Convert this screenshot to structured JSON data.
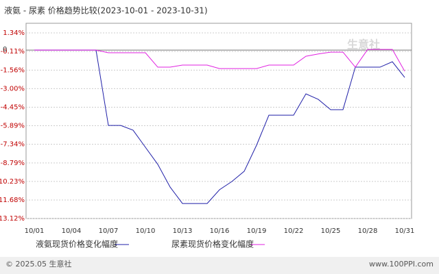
{
  "chart_data": {
    "type": "line",
    "title": "液氨 - 尿素 价格趋势比较(2023-10-01 - 2023-10-31)",
    "categories": [
      "10/01",
      null,
      null,
      "10/04",
      null,
      null,
      "10/07",
      null,
      null,
      "10/10",
      null,
      null,
      "10/13",
      null,
      null,
      "10/16",
      null,
      null,
      "10/19",
      null,
      null,
      "10/22",
      null,
      null,
      "10/25",
      null,
      null,
      "10/28",
      null,
      null,
      "10/31"
    ],
    "series": [
      {
        "name": "液氨现货价格变化幅度",
        "color": "#1f1fa8",
        "values": [
          0,
          0,
          0,
          0,
          0,
          0,
          -5.87,
          -5.87,
          -6.24,
          -7.57,
          -8.9,
          -10.67,
          -11.95,
          -11.95,
          -11.95,
          -10.88,
          -10.24,
          -9.44,
          -7.41,
          -5.07,
          -5.07,
          -5.07,
          -3.41,
          -3.84,
          -4.64,
          -4.64,
          -1.33,
          -1.33,
          -1.33,
          -0.91,
          -2.13
        ]
      },
      {
        "name": "尿素现货价格变化幅度",
        "color": "#e020e0",
        "values": [
          0,
          0,
          0,
          0,
          0,
          0,
          -0.21,
          -0.21,
          -0.21,
          -0.21,
          -1.33,
          -1.33,
          -1.17,
          -1.17,
          -1.17,
          -1.44,
          -1.44,
          -1.44,
          -1.44,
          -1.17,
          -1.17,
          -1.17,
          -0.48,
          -0.3,
          -0.16,
          -0.16,
          -1.33,
          0.05,
          0.05,
          0.05,
          -1.65
        ]
      }
    ],
    "ylim": [
      -13.12,
      1.34
    ],
    "yticks": [
      {
        "value": 1.34,
        "label": "1.34%"
      },
      {
        "value": -0.11,
        "label": "-0.11%"
      },
      {
        "value": -1.56,
        "label": "-1.56%"
      },
      {
        "value": -3.0,
        "label": "-3.00%"
      },
      {
        "value": -4.45,
        "label": "-4.45%"
      },
      {
        "value": -5.89,
        "label": "-5.89%"
      },
      {
        "value": -7.34,
        "label": "-7.34%"
      },
      {
        "value": -8.79,
        "label": "-8.79%"
      },
      {
        "value": -10.23,
        "label": "-10.23%"
      },
      {
        "value": -11.68,
        "label": "-11.68%"
      },
      {
        "value": -13.12,
        "label": "-13.12%"
      }
    ],
    "zero_line": {
      "value": 0,
      "label": "0"
    },
    "grid": true,
    "watermark": "生意社",
    "footer_left": "© 2025.05 生意社",
    "footer_right": "www.100PPI.com"
  }
}
